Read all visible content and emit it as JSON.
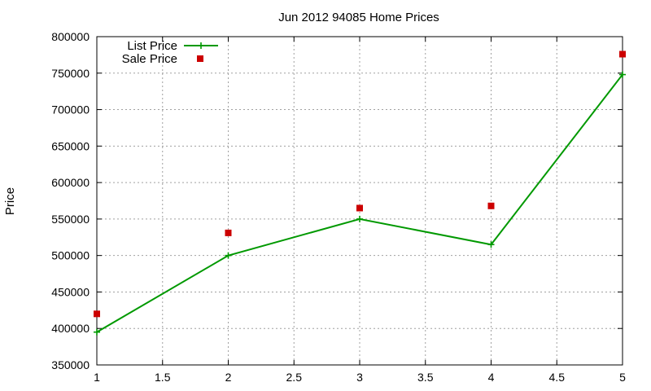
{
  "chart_data": {
    "type": "line",
    "title": "Jun 2012 94085 Home Prices",
    "xlabel": "",
    "ylabel": "Price",
    "xlim": [
      1,
      5
    ],
    "ylim": [
      350000,
      800000
    ],
    "x_ticks": [
      1,
      1.5,
      2,
      2.5,
      3,
      3.5,
      4,
      4.5,
      5
    ],
    "x_tick_labels": [
      "1",
      "1.5",
      "2",
      "2.5",
      "3",
      "3.5",
      "4",
      "4.5",
      "5"
    ],
    "y_ticks": [
      350000,
      400000,
      450000,
      500000,
      550000,
      600000,
      650000,
      700000,
      750000,
      800000
    ],
    "y_tick_labels": [
      "350000",
      "400000",
      "450000",
      "500000",
      "550000",
      "600000",
      "650000",
      "700000",
      "750000",
      "800000"
    ],
    "grid": true,
    "legend_position": "top-left",
    "series": [
      {
        "name": "List Price",
        "style": "lines+points",
        "marker": "plus",
        "color": "#009900",
        "x": [
          1,
          2,
          3,
          4,
          5
        ],
        "y": [
          395000,
          500000,
          550000,
          515000,
          748000
        ]
      },
      {
        "name": "Sale Price",
        "style": "points",
        "marker": "square",
        "color": "#cc0000",
        "x": [
          1,
          2,
          3,
          4,
          5
        ],
        "y": [
          420000,
          531000,
          565000,
          568000,
          776000
        ]
      }
    ]
  }
}
